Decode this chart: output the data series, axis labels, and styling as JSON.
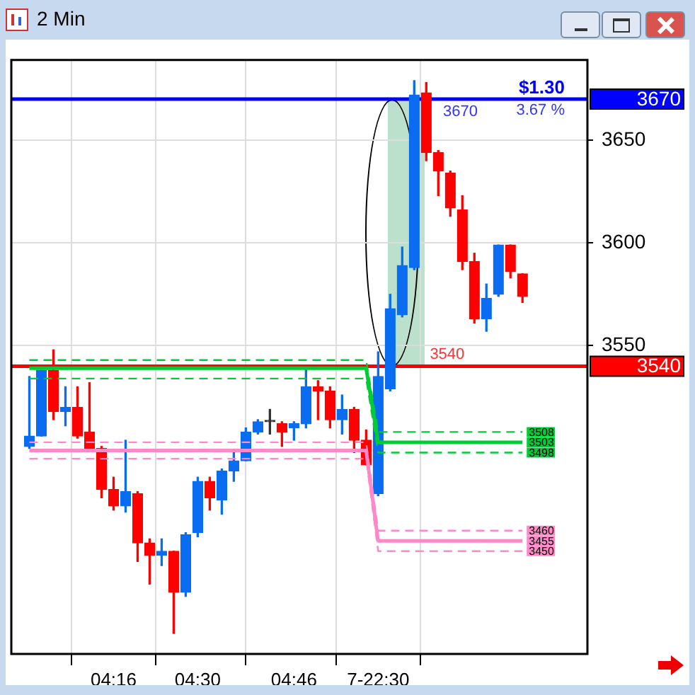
{
  "chart_data": {
    "type": "candlestick",
    "title": "2 Min",
    "categories": [
      null,
      null,
      null,
      null,
      null,
      null,
      null,
      "04:16",
      null,
      null,
      null,
      null,
      null,
      null,
      "04:30",
      null,
      null,
      null,
      null,
      null,
      null,
      null,
      "04:46",
      null,
      null,
      null,
      null,
      null,
      null,
      "7-22:30",
      null,
      null,
      null,
      null,
      null,
      null,
      null,
      null,
      null,
      null,
      null,
      null
    ],
    "ohlc": [
      [
        3501,
        3535,
        3500,
        3506
      ],
      [
        3506,
        3538,
        3506,
        3538
      ],
      [
        3538,
        3548,
        3514,
        3518
      ],
      [
        3518,
        3530,
        3511,
        3520
      ],
      [
        3520,
        3530,
        3505,
        3506
      ],
      [
        3508,
        3532,
        3499,
        3500
      ],
      [
        3500,
        3501,
        3476,
        3480
      ],
      [
        3480,
        3486,
        3470,
        3472
      ],
      [
        3472,
        3504,
        3469,
        3479
      ],
      [
        3478,
        3479,
        3445,
        3454
      ],
      [
        3454,
        3456,
        3434,
        3448
      ],
      [
        3448,
        3456,
        3443,
        3450
      ],
      [
        3450,
        3450,
        3410,
        3430
      ],
      [
        3430,
        3459,
        3428,
        3458
      ],
      [
        3459,
        3486,
        3457,
        3484
      ],
      [
        3484,
        3486,
        3470,
        3476
      ],
      [
        3475,
        3490,
        3468,
        3489
      ],
      [
        3489,
        3499,
        3484,
        3494
      ],
      [
        3494,
        3510,
        3494,
        3508
      ],
      [
        3508,
        3514,
        3507,
        3513
      ],
      [
        3513,
        3519,
        3507,
        3513
      ],
      [
        3512,
        3513,
        3501,
        3508
      ],
      [
        3510,
        3513,
        3504,
        3512
      ],
      [
        3512,
        3539,
        3510,
        3530
      ],
      [
        3530,
        3533,
        3514,
        3528
      ],
      [
        3528,
        3530,
        3510,
        3514
      ],
      [
        3514,
        3526,
        3507,
        3519
      ],
      [
        3519,
        3520,
        3498,
        3504
      ],
      [
        3504,
        3509,
        3492,
        3492
      ],
      [
        3478,
        3547,
        3477,
        3535
      ],
      [
        3529,
        3575,
        3528,
        3568
      ],
      [
        3565,
        3598,
        3564,
        3589
      ],
      [
        3588,
        3679,
        3587,
        3672
      ],
      [
        3673,
        3678,
        3640,
        3644
      ],
      [
        3644,
        3645,
        3623,
        3635
      ],
      [
        3634,
        3635,
        3613,
        3617
      ],
      [
        3616,
        3623,
        3587,
        3591
      ],
      [
        3591,
        3595,
        3561,
        3563
      ],
      [
        3563,
        3580,
        3557,
        3573
      ],
      [
        3575,
        3599,
        3574,
        3599
      ],
      [
        3599,
        3599,
        3583,
        3586
      ],
      [
        3585,
        3585,
        3571,
        3574
      ]
    ],
    "colors": [
      "#0a6cf0",
      "#0a6cf0",
      "#ff0000",
      "#0a6cf0",
      "#ff0000",
      "#ff0000",
      "#ff0000",
      "#ff0000",
      "#0a6cf0",
      "#ff0000",
      "#ff0000",
      "#0a6cf0",
      "#ff0000",
      "#0a6cf0",
      "#0a6cf0",
      "#ff0000",
      "#0a6cf0",
      "#0a6cf0",
      "#0a6cf0",
      "#0a6cf0",
      "#333333",
      "#ff0000",
      "#0a6cf0",
      "#0a6cf0",
      "#ff0000",
      "#ff0000",
      "#0a6cf0",
      "#ff0000",
      "#ff0000",
      "#0a6cf0",
      "#0a6cf0",
      "#0a6cf0",
      "#0a6cf0",
      "#ff0000",
      "#ff0000",
      "#ff0000",
      "#ff0000",
      "#ff0000",
      "#0a6cf0",
      "#0a6cf0",
      "#ff0000",
      "#ff0000"
    ],
    "series": [
      {
        "type": "line",
        "color": "#00cc33",
        "line_style": "dashed",
        "values": [
          3543,
          3543,
          3543,
          3543,
          3543,
          3543,
          3543,
          3543,
          3543,
          3543,
          3543,
          3543,
          3543,
          3543,
          3543,
          3543,
          3543,
          3543,
          3543,
          3543,
          3543,
          3543,
          3543,
          3543,
          3543,
          3543,
          3543,
          3543,
          3543,
          3508,
          3508,
          3508,
          3508,
          3508,
          3508,
          3508,
          3508,
          3508,
          3508,
          3508,
          3508,
          3508
        ],
        "value_labels": [
          null,
          null,
          null,
          null,
          null,
          null,
          null,
          null,
          null,
          null,
          null,
          null,
          null,
          null,
          null,
          null,
          null,
          null,
          null,
          null,
          null,
          null,
          null,
          null,
          null,
          null,
          null,
          null,
          null,
          null,
          null,
          null,
          null,
          null,
          null,
          null,
          null,
          null,
          null,
          null,
          null,
          "3508"
        ]
      },
      {
        "type": "line",
        "color": "#00cc33",
        "line_style": "solid",
        "values": [
          3539,
          3539,
          3539,
          3539,
          3539,
          3539,
          3539,
          3539,
          3539,
          3539,
          3539,
          3539,
          3539,
          3539,
          3539,
          3539,
          3539,
          3539,
          3539,
          3539,
          3539,
          3539,
          3539,
          3539,
          3539,
          3539,
          3539,
          3539,
          3539,
          3503,
          3503,
          3503,
          3503,
          3503,
          3503,
          3503,
          3503,
          3503,
          3503,
          3503,
          3503,
          3503
        ],
        "value_labels": [
          null,
          null,
          null,
          null,
          null,
          null,
          null,
          null,
          null,
          null,
          null,
          null,
          null,
          null,
          null,
          null,
          null,
          null,
          null,
          null,
          null,
          null,
          null,
          null,
          null,
          null,
          null,
          null,
          null,
          null,
          null,
          null,
          null,
          null,
          null,
          null,
          null,
          null,
          null,
          null,
          null,
          "3503"
        ]
      },
      {
        "type": "line",
        "color": "#00cc33",
        "line_style": "dashed",
        "values": [
          3534,
          3534,
          3534,
          3534,
          3534,
          3534,
          3534,
          3534,
          3534,
          3534,
          3534,
          3534,
          3534,
          3534,
          3534,
          3534,
          3534,
          3534,
          3534,
          3534,
          3534,
          3534,
          3534,
          3534,
          3534,
          3534,
          3534,
          3534,
          3534,
          3498,
          3498,
          3498,
          3498,
          3498,
          3498,
          3498,
          3498,
          3498,
          3498,
          3498,
          3498,
          3498
        ],
        "value_labels": [
          null,
          null,
          null,
          null,
          null,
          null,
          null,
          null,
          null,
          null,
          null,
          null,
          null,
          null,
          null,
          null,
          null,
          null,
          null,
          null,
          null,
          null,
          null,
          null,
          null,
          null,
          null,
          null,
          null,
          null,
          null,
          null,
          null,
          null,
          null,
          null,
          null,
          null,
          null,
          null,
          null,
          "3498"
        ]
      },
      {
        "type": "line",
        "color": "#ff88c8",
        "line_style": "dashed",
        "values": [
          3503,
          3503,
          3503,
          3503,
          3503,
          3503,
          3503,
          3503,
          3503,
          3503,
          3503,
          3503,
          3503,
          3503,
          3503,
          3503,
          3503,
          3503,
          3503,
          3503,
          3503,
          3503,
          3503,
          3503,
          3503,
          3503,
          3503,
          3503,
          3503,
          3460,
          3460,
          3460,
          3460,
          3460,
          3460,
          3460,
          3460,
          3460,
          3460,
          3460,
          3460,
          3460
        ],
        "value_labels": [
          null,
          null,
          null,
          null,
          null,
          null,
          null,
          null,
          null,
          null,
          null,
          null,
          null,
          null,
          null,
          null,
          null,
          null,
          null,
          null,
          null,
          null,
          null,
          null,
          null,
          null,
          null,
          null,
          null,
          null,
          null,
          null,
          null,
          null,
          null,
          null,
          null,
          null,
          null,
          null,
          null,
          "3460"
        ]
      },
      {
        "type": "line",
        "color": "#ff88c8",
        "line_style": "solid",
        "values": [
          3499,
          3499,
          3499,
          3499,
          3499,
          3499,
          3499,
          3499,
          3499,
          3499,
          3499,
          3499,
          3499,
          3499,
          3499,
          3499,
          3499,
          3499,
          3499,
          3499,
          3499,
          3499,
          3499,
          3499,
          3499,
          3499,
          3499,
          3499,
          3499,
          3455,
          3455,
          3455,
          3455,
          3455,
          3455,
          3455,
          3455,
          3455,
          3455,
          3455,
          3455,
          3455
        ],
        "value_labels": [
          null,
          null,
          null,
          null,
          null,
          null,
          null,
          null,
          null,
          null,
          null,
          null,
          null,
          null,
          null,
          null,
          null,
          null,
          null,
          null,
          null,
          null,
          null,
          null,
          null,
          null,
          null,
          null,
          null,
          null,
          null,
          null,
          null,
          null,
          null,
          null,
          null,
          null,
          null,
          null,
          null,
          "3455"
        ]
      },
      {
        "type": "line",
        "color": "#ff88c8",
        "line_style": "dashed",
        "values": [
          3495,
          3495,
          3495,
          3495,
          3495,
          3495,
          3495,
          3495,
          3495,
          3495,
          3495,
          3495,
          3495,
          3495,
          3495,
          3495,
          3495,
          3495,
          3495,
          3495,
          3495,
          3495,
          3495,
          3495,
          3495,
          3495,
          3495,
          3495,
          3495,
          3450,
          3450,
          3450,
          3450,
          3450,
          3450,
          3450,
          3450,
          3450,
          3450,
          3450,
          3450,
          3450
        ],
        "value_labels": [
          null,
          null,
          null,
          null,
          null,
          null,
          null,
          null,
          null,
          null,
          null,
          null,
          null,
          null,
          null,
          null,
          null,
          null,
          null,
          null,
          null,
          null,
          null,
          null,
          null,
          null,
          null,
          null,
          null,
          null,
          null,
          null,
          null,
          null,
          null,
          null,
          null,
          null,
          null,
          null,
          null,
          "3450"
        ]
      }
    ],
    "ref_lines": [
      {
        "axis": "y",
        "value": 3670,
        "label": "3670",
        "color": "#0000ff"
      },
      {
        "axis": "y",
        "value": 3540,
        "label": "3540",
        "color": "#ff0000"
      }
    ],
    "annotations": [
      "$1.30",
      "3.67 %",
      "3670",
      "3540"
    ],
    "ylim": [
      3400,
      3689
    ],
    "yticks": [
      3550,
      3600,
      3650
    ],
    "grid": true,
    "legend": false
  }
}
